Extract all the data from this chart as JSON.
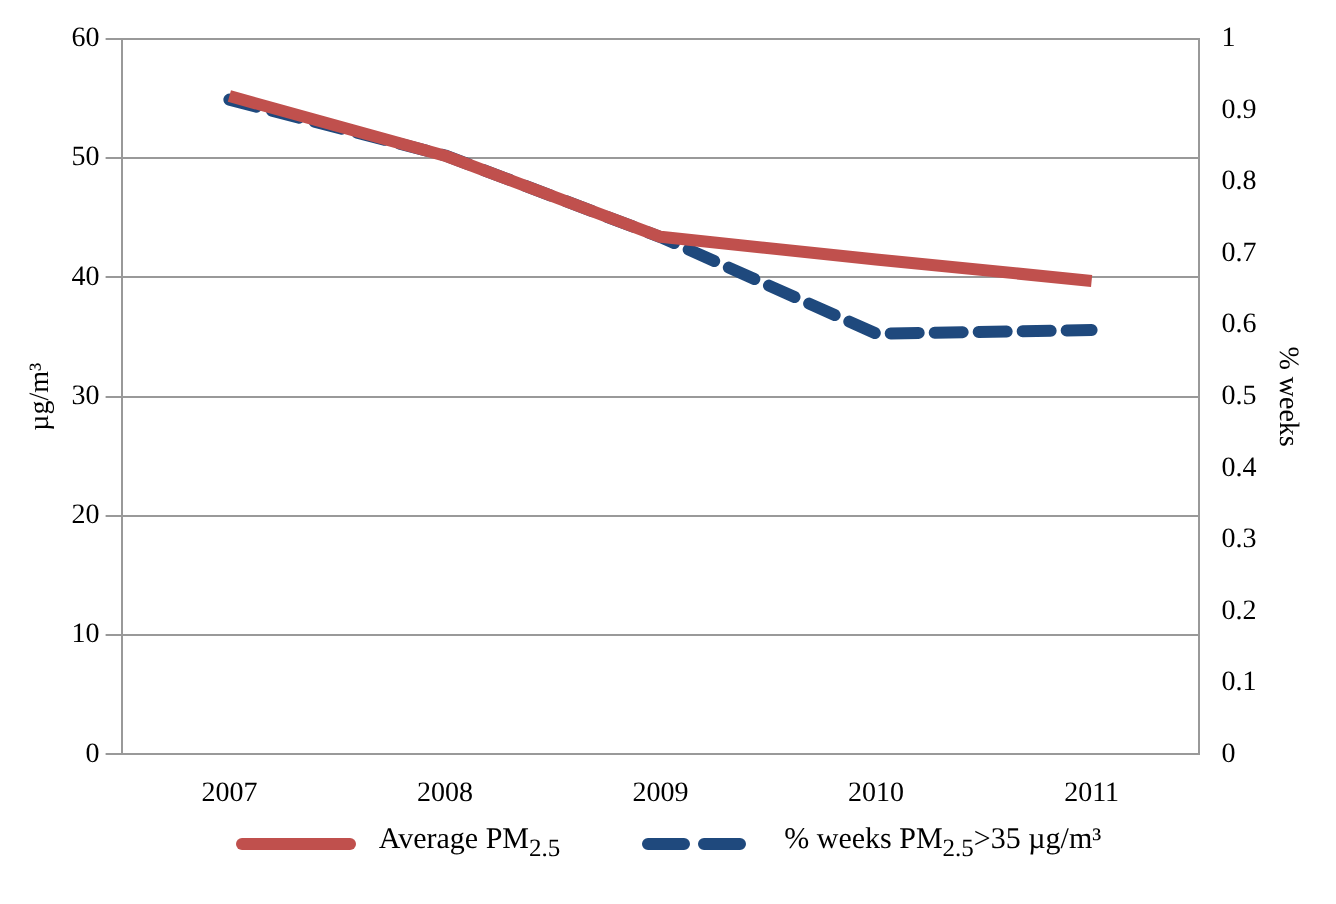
{
  "chart_data": {
    "type": "line",
    "categories": [
      "2007",
      "2008",
      "2009",
      "2010",
      "2011"
    ],
    "ylabel": "µg/m³",
    "y2label": "% weeks",
    "ylim": [
      0,
      60
    ],
    "yticks": [
      0,
      10,
      20,
      30,
      40,
      50,
      60
    ],
    "y2lim": [
      0,
      1
    ],
    "y2ticks": [
      0,
      0.1,
      0.2,
      0.3,
      0.4,
      0.5,
      0.6,
      0.7,
      0.8,
      0.9,
      1
    ],
    "grid": "y",
    "legend": "bottom",
    "marker": "none",
    "series": [
      {
        "name": "Average PM$_{2.5}$",
        "color": "#c0504d",
        "values": [
          55.2,
          50.2,
          43.4,
          41.5,
          39.7
        ],
        "line_style": "solid"
      },
      {
        "name": "% weeks PM$_{2.5}$>35 µg/m³",
        "color": "#1f497d",
        "values": [
          0.915,
          0.837,
          0.723,
          0.588,
          0.593
        ],
        "axis": "y2",
        "line_style": "dashed"
      }
    ]
  }
}
